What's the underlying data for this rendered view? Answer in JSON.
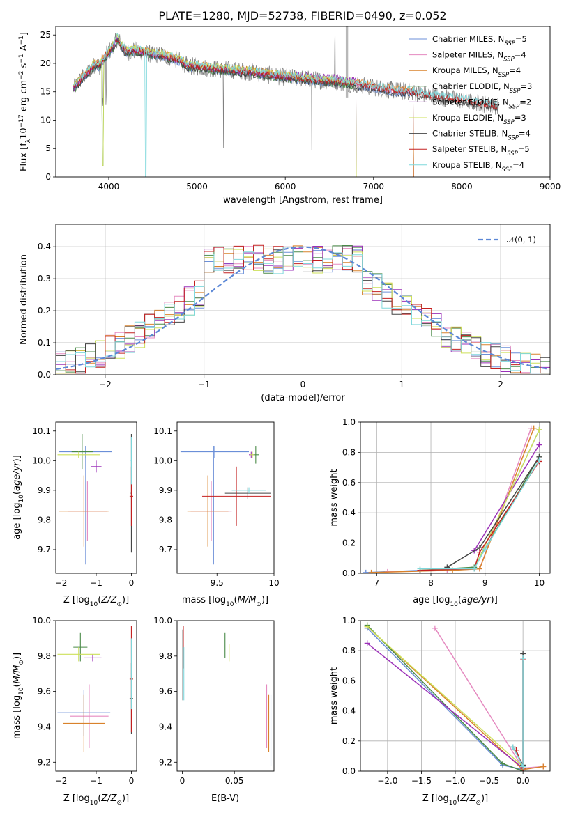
{
  "figure_title": "PLATE=1280, MJD=52738, FIBERID=0490, z=0.052",
  "colors": {
    "Chabrier MILES": "#6b8fd8",
    "Salpeter MILES": "#e58ac0",
    "Kroupa MILES": "#d9822b",
    "Chabrier ELODIE": "#4a8a48",
    "Salpeter ELODIE": "#9b30b8",
    "Kroupa ELODIE": "#cde05a",
    "Chabrier STELIB": "#444444",
    "Salpeter STELIB": "#c42020",
    "Kroupa STELIB": "#7fd8dc",
    "data": "#808080",
    "normal": "#5b87d6"
  },
  "chart_data": [
    {
      "type": "line",
      "panel": "spectrum",
      "xlabel": "wavelength [Angstrom, rest frame]",
      "ylabel": "Flux [f_λ 10^-17 erg cm^-2 s^-1 A^-1]",
      "xlim": [
        3400,
        9000
      ],
      "ylim": [
        0,
        26.5
      ],
      "xticks": [
        4000,
        5000,
        6000,
        7000,
        8000,
        9000
      ],
      "yticks": [
        0,
        5,
        10,
        15,
        20,
        25
      ],
      "grid": false,
      "legend_position": "top-right",
      "continuum": {
        "x": [
          3600,
          3650,
          3700,
          3750,
          3800,
          3850,
          3900,
          3950,
          4000,
          4050,
          4100,
          4150,
          4200,
          4300,
          4400,
          4500,
          4600,
          4700,
          4800,
          4900,
          5000,
          5200,
          5400,
          5600,
          5800,
          6000,
          6200,
          6400,
          6600,
          6800,
          7000,
          7200,
          7400,
          7600,
          7800,
          8000,
          8200,
          8400
        ],
        "y": [
          15.5,
          16.5,
          17.5,
          18.2,
          19,
          20,
          19.5,
          21,
          22,
          23,
          24.5,
          23,
          22,
          22.3,
          22,
          21.5,
          21.5,
          21,
          20.5,
          19.5,
          19.5,
          19,
          18.8,
          18.5,
          18,
          17.6,
          17.3,
          17,
          16.8,
          16.3,
          15.8,
          15.3,
          15,
          14.5,
          14,
          13.5,
          13,
          12.5
        ]
      },
      "series": [
        {
          "name": "Chabrier MILES",
          "n_ssp": "5",
          "x_end": 7450
        },
        {
          "name": "Salpeter MILES",
          "n_ssp": "4",
          "x_end": 7450
        },
        {
          "name": "Kroupa MILES",
          "n_ssp": "4",
          "x_end": 7450
        },
        {
          "name": "Chabrier ELODIE",
          "n_ssp": "3",
          "x_end": 6800
        },
        {
          "name": "Salpeter ELODIE",
          "n_ssp": "2",
          "x_end": 6800
        },
        {
          "name": "Kroupa ELODIE",
          "n_ssp": "3",
          "x_end": 6800
        },
        {
          "name": "Chabrier STELIB",
          "n_ssp": "4",
          "x_end": 8400
        },
        {
          "name": "Salpeter STELIB",
          "n_ssp": "5",
          "x_end": 8400
        },
        {
          "name": "Kroupa STELIB",
          "n_ssp": "4",
          "x_end": 8400
        }
      ],
      "annotations": [
        "strong absorption dips near 3900 and 4400 Å",
        "emission spike near 6563 Å"
      ]
    },
    {
      "type": "line",
      "panel": "residuals",
      "xlabel": "(data-model)/error",
      "ylabel": "Normed distribution",
      "xlim": [
        -2.5,
        2.5
      ],
      "ylim": [
        0,
        0.47
      ],
      "xticks": [
        -2,
        -1,
        0,
        1,
        2
      ],
      "yticks": [
        0.0,
        0.1,
        0.2,
        0.3,
        0.4
      ],
      "grid": true,
      "legend_position": "top-right",
      "legend_label": "𝒩(0, 1)",
      "normal": {
        "mu": 0,
        "sigma": 1
      },
      "histogram_bin_width": 0.1,
      "histogram_shape": "step curves of 9 model fits, peak near 0.35 to 0.45, roughly flat between -1 and 0.5"
    },
    {
      "type": "scatter",
      "panel": "age-vs-Z",
      "xlabel": "Z [log10(Z/Z⊙)]",
      "ylabel": "age [log10(age/yr)]",
      "xlim": [
        -2.15,
        0.15
      ],
      "ylim": [
        9.62,
        10.13
      ],
      "xticks": [
        -2,
        -1,
        0
      ],
      "yticks": [
        9.7,
        9.8,
        9.9,
        10.0,
        10.1
      ],
      "points": [
        {
          "series": "Chabrier MILES",
          "x": -1.3,
          "y": 10.03,
          "xerr": 0.75,
          "yerr": 0.02,
          "x2": -1.3,
          "y2": 9.85,
          "yerr2": 0.2
        },
        {
          "series": "Salpeter MILES",
          "x": -1.25,
          "y": 9.83,
          "xerr": 0.55,
          "yerr": 0.1
        },
        {
          "series": "Kroupa MILES",
          "x": -1.35,
          "y": 9.83,
          "xerr": 0.7,
          "yerr": 0.12
        },
        {
          "series": "Chabrier ELODIE",
          "x": -1.4,
          "y": 10.03,
          "xerr": 0.3,
          "yerr": 0.06
        },
        {
          "series": "Salpeter ELODIE",
          "x": -1.0,
          "y": 9.98,
          "xerr": 0.15,
          "yerr": 0.02
        },
        {
          "series": "Kroupa ELODIE",
          "x": -1.5,
          "y": 10.02,
          "xerr": 0.6,
          "yerr": 0.01
        },
        {
          "series": "Chabrier STELIB",
          "x": 0.0,
          "y": 9.89,
          "xerr": 0.02,
          "yerr": 0.2
        },
        {
          "series": "Salpeter STELIB",
          "x": 0.0,
          "y": 9.88,
          "xerr": 0.05,
          "yerr": 0.1
        },
        {
          "series": "Kroupa STELIB",
          "x": 0.0,
          "y": 10.0,
          "xerr": 0.02,
          "yerr": 0.08
        }
      ]
    },
    {
      "type": "scatter",
      "panel": "age-vs-mass",
      "xlabel": "mass [log10(M/M⊙)]",
      "ylabel": "",
      "xlim": [
        9.15,
        10.0
      ],
      "ylim": [
        9.62,
        10.13
      ],
      "xticks": [
        9.5,
        10.0
      ],
      "yticks": [
        9.7,
        9.8,
        9.9,
        10.0,
        10.1
      ],
      "points": [
        {
          "series": "Chabrier MILES",
          "x": 9.48,
          "y": 10.03,
          "xerr": 0.3,
          "yerr": 0.02,
          "x2": 9.47,
          "y2": 9.85,
          "yerr2": 0.2
        },
        {
          "series": "Salpeter MILES",
          "x": 9.45,
          "y": 9.83,
          "xerr": 0.18,
          "yerr": 0.1
        },
        {
          "series": "Kroupa MILES",
          "x": 9.42,
          "y": 9.83,
          "xerr": 0.18,
          "yerr": 0.12
        },
        {
          "series": "Chabrier ELODIE",
          "x": 9.84,
          "y": 10.02,
          "xerr": 0.03,
          "yerr": 0.03
        },
        {
          "series": "Salpeter ELODIE",
          "x": 9.8,
          "y": 10.02,
          "xerr": 0.02,
          "yerr": 0.01
        },
        {
          "series": "Kroupa ELODIE",
          "x": 9.81,
          "y": 10.02,
          "xerr": 0.02,
          "yerr": 0.01
        },
        {
          "series": "Chabrier STELIB",
          "x": 9.77,
          "y": 9.89,
          "xerr": 0.2,
          "yerr": 0.02
        },
        {
          "series": "Salpeter STELIB",
          "x": 9.67,
          "y": 9.88,
          "xerr": 0.3,
          "yerr": 0.1
        },
        {
          "series": "Kroupa STELIB",
          "x": 9.78,
          "y": 9.9,
          "xerr": 0.15,
          "yerr": 0.01
        }
      ]
    },
    {
      "type": "line",
      "panel": "mass-weight-vs-age",
      "xlabel": "age [log10(age/yr)]",
      "ylabel": "mass weight",
      "xlim": [
        6.7,
        10.2
      ],
      "ylim": [
        0,
        1.0
      ],
      "xticks": [
        7,
        8,
        9,
        10
      ],
      "yticks": [
        0.0,
        0.2,
        0.4,
        0.6,
        0.8,
        1.0
      ],
      "grid": true,
      "series": [
        {
          "name": "Chabrier MILES",
          "x": [
            6.8,
            7.8,
            8.8,
            10.0
          ],
          "y": [
            0.005,
            0.02,
            0.03,
            0.95
          ]
        },
        {
          "name": "Salpeter MILES",
          "x": [
            7.2,
            8.3,
            8.9,
            9.85
          ],
          "y": [
            0.01,
            0.02,
            0.03,
            0.96
          ]
        },
        {
          "name": "Kroupa MILES",
          "x": [
            6.9,
            8.4,
            8.9,
            9.9
          ],
          "y": [
            0.005,
            0.02,
            0.03,
            0.96
          ]
        },
        {
          "name": "Chabrier ELODIE",
          "x": [
            7.8,
            8.8,
            10.0
          ],
          "y": [
            0.02,
            0.04,
            0.77
          ]
        },
        {
          "name": "Salpeter ELODIE",
          "x": [
            8.8,
            10.0
          ],
          "y": [
            0.15,
            0.85
          ]
        },
        {
          "name": "Kroupa ELODIE",
          "x": [
            7.8,
            8.8,
            10.0
          ],
          "y": [
            0.02,
            0.03,
            0.95
          ]
        },
        {
          "name": "Chabrier STELIB",
          "x": [
            8.3,
            8.9,
            10.0
          ],
          "y": [
            0.04,
            0.17,
            0.77
          ]
        },
        {
          "name": "Salpeter STELIB",
          "x": [
            7.8,
            8.8,
            8.9,
            10.0
          ],
          "y": [
            0.02,
            0.03,
            0.14,
            0.74
          ]
        },
        {
          "name": "Kroupa STELIB",
          "x": [
            7.8,
            8.8,
            9.0,
            10.0
          ],
          "y": [
            0.03,
            0.03,
            0.16,
            0.75
          ]
        }
      ]
    },
    {
      "type": "scatter",
      "panel": "mass-vs-Z",
      "xlabel": "Z [log10(Z/Z⊙)]",
      "ylabel": "mass [log10(M/M⊙)]",
      "xlim": [
        -2.15,
        0.15
      ],
      "ylim": [
        9.15,
        10.0
      ],
      "xticks": [
        -2,
        -1,
        0
      ],
      "yticks": [
        9.2,
        9.4,
        9.6,
        9.8,
        10.0
      ],
      "points": [
        {
          "series": "Chabrier MILES",
          "x": -1.35,
          "y": 9.48,
          "xerr": 0.75,
          "yerr": 0.13
        },
        {
          "series": "Salpeter MILES",
          "x": -1.2,
          "y": 9.46,
          "xerr": 0.55,
          "yerr": 0.18
        },
        {
          "series": "Kroupa MILES",
          "x": -1.35,
          "y": 9.42,
          "xerr": 0.6,
          "yerr": 0.16
        },
        {
          "series": "Chabrier ELODIE",
          "x": -1.45,
          "y": 9.85,
          "xerr": 0.2,
          "yerr": 0.08
        },
        {
          "series": "Salpeter ELODIE",
          "x": -1.1,
          "y": 9.79,
          "xerr": 0.25,
          "yerr": 0.02
        },
        {
          "series": "Kroupa ELODIE",
          "x": -1.5,
          "y": 9.81,
          "xerr": 0.6,
          "yerr": 0.04
        },
        {
          "series": "Chabrier STELIB",
          "x": 0.0,
          "y": 9.56,
          "xerr": 0.05,
          "yerr": 0.2
        },
        {
          "series": "Salpeter STELIB",
          "x": 0.0,
          "y": 9.67,
          "xerr": 0.05,
          "yerr": 0.3
        },
        {
          "series": "Kroupa STELIB",
          "x": 0.0,
          "y": 9.7,
          "xerr": 0.02,
          "yerr": 0.2
        }
      ]
    },
    {
      "type": "scatter",
      "panel": "mass-vs-EBV",
      "xlabel": "E(B-V)",
      "ylabel": "",
      "xlim": [
        -0.005,
        0.088
      ],
      "ylim": [
        9.15,
        10.0
      ],
      "xticks": [
        0.0,
        0.05
      ],
      "yticks": [
        9.2,
        9.4,
        9.6,
        9.8,
        10.0
      ],
      "points": [
        {
          "series": "Chabrier MILES",
          "x": 0.085,
          "y": 9.38,
          "yerr": 0.2
        },
        {
          "series": "Salpeter MILES",
          "x": 0.081,
          "y": 9.46,
          "yerr": 0.18
        },
        {
          "series": "Kroupa MILES",
          "x": 0.083,
          "y": 9.42,
          "yerr": 0.16
        },
        {
          "series": "Chabrier ELODIE",
          "x": 0.041,
          "y": 9.86,
          "yerr": 0.07
        },
        {
          "series": "Kroupa ELODIE",
          "x": 0.045,
          "y": 9.82,
          "yerr": 0.05
        },
        {
          "series": "Chabrier STELIB",
          "x": 0.0005,
          "y": 9.75,
          "yerr": 0.2
        },
        {
          "series": "Salpeter STELIB",
          "x": 0.001,
          "y": 9.85,
          "yerr": 0.12
        },
        {
          "series": "Kroupa STELIB",
          "x": 0.0015,
          "y": 9.7,
          "yerr": 0.15
        }
      ]
    },
    {
      "type": "line",
      "panel": "mass-weight-vs-Z",
      "xlabel": "Z [log10(Z/Z⊙)]",
      "ylabel": "mass weight",
      "xlim": [
        -2.4,
        0.4
      ],
      "ylim": [
        0,
        1.0
      ],
      "xticks": [
        -2.0,
        -1.5,
        -1.0,
        -0.5,
        0.0
      ],
      "yticks": [
        0.0,
        0.2,
        0.4,
        0.6,
        0.8,
        1.0
      ],
      "grid": true,
      "series": [
        {
          "name": "Chabrier MILES",
          "x": [
            -2.3,
            -0.3,
            0.0
          ],
          "y": [
            0.95,
            0.04,
            0.01
          ]
        },
        {
          "name": "Salpeter MILES",
          "x": [
            -1.3,
            0.0,
            0.3
          ],
          "y": [
            0.95,
            0.02,
            0.03
          ]
        },
        {
          "name": "Kroupa MILES",
          "x": [
            -2.3,
            0.0,
            0.3
          ],
          "y": [
            0.96,
            0.01,
            0.03
          ]
        },
        {
          "name": "Chabrier ELODIE",
          "x": [
            -2.3,
            -0.3,
            0.0
          ],
          "y": [
            0.97,
            0.05,
            0.0
          ]
        },
        {
          "name": "Salpeter ELODIE",
          "x": [
            -2.3,
            0.0
          ],
          "y": [
            0.85,
            0.02
          ]
        },
        {
          "name": "Kroupa ELODIE",
          "x": [
            -2.3,
            0.0
          ],
          "y": [
            0.96,
            0.03
          ]
        },
        {
          "name": "Chabrier STELIB",
          "x": [
            0.0,
            0.0,
            -0.15
          ],
          "y": [
            0.78,
            0.04,
            0.16
          ]
        },
        {
          "name": "Salpeter STELIB",
          "x": [
            0.0,
            0.0,
            -0.1
          ],
          "y": [
            0.74,
            0.02,
            0.14
          ]
        },
        {
          "name": "Kroupa STELIB",
          "x": [
            0.0,
            0.0,
            -0.15
          ],
          "y": [
            0.75,
            0.03,
            0.16
          ]
        }
      ]
    }
  ]
}
